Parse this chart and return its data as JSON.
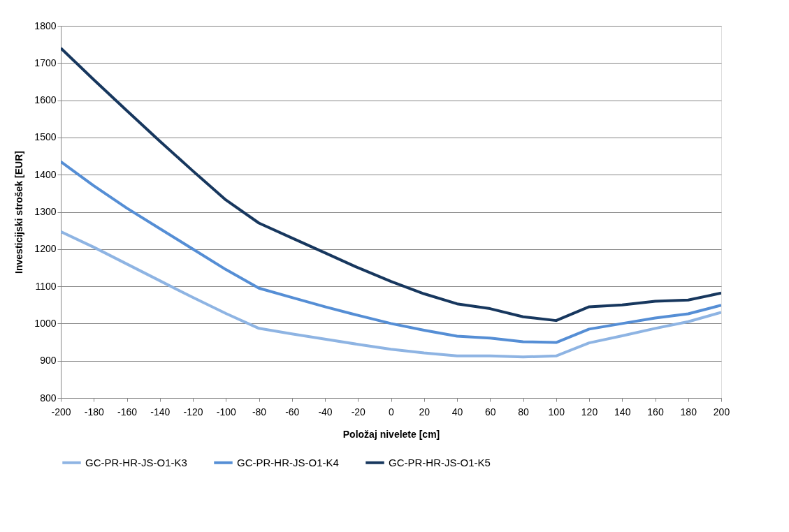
{
  "chart_data": {
    "type": "line",
    "xlabel": "Položaj nivelete [cm]",
    "ylabel": "Investicijski strošek [EUR]",
    "x": [
      -200,
      -180,
      -160,
      -140,
      -120,
      -100,
      -80,
      -60,
      -40,
      -20,
      0,
      20,
      40,
      60,
      80,
      100,
      120,
      140,
      160,
      180,
      200
    ],
    "xlim": [
      -200,
      200
    ],
    "xticks": [
      -200,
      -180,
      -160,
      -140,
      -120,
      -100,
      -80,
      -60,
      -40,
      -20,
      0,
      20,
      40,
      60,
      80,
      100,
      120,
      140,
      160,
      180,
      200
    ],
    "ylim": [
      800,
      1800
    ],
    "yticks": [
      800,
      900,
      1000,
      1100,
      1200,
      1300,
      1400,
      1500,
      1600,
      1700,
      1800
    ],
    "grid": "y",
    "legend": "bottom",
    "marker": "none",
    "line_style": "solid",
    "series": [
      {
        "name": "GC-PR-HR-JS-O1-K3",
        "color": "#8eb4e3",
        "values": [
          1247,
          1205,
          1160,
          1115,
          1070,
          1027,
          987,
          972,
          958,
          944,
          931,
          921,
          913,
          913,
          910,
          913,
          948,
          967,
          987,
          1005,
          1030
        ]
      },
      {
        "name": "GC-PR-HR-JS-O1-K4",
        "color": "#558ed5",
        "values": [
          1435,
          1370,
          1310,
          1255,
          1200,
          1145,
          1095,
          1070,
          1045,
          1022,
          1000,
          982,
          966,
          961,
          951,
          949,
          985,
          1000,
          1015,
          1026,
          1049
        ]
      },
      {
        "name": "GC-PR-HR-JS-O1-K5",
        "color": "#17375e",
        "values": [
          1740,
          1655,
          1572,
          1490,
          1410,
          1332,
          1270,
          1230,
          1190,
          1150,
          1113,
          1080,
          1053,
          1040,
          1018,
          1008,
          1045,
          1050,
          1060,
          1063,
          1082
        ]
      }
    ]
  }
}
